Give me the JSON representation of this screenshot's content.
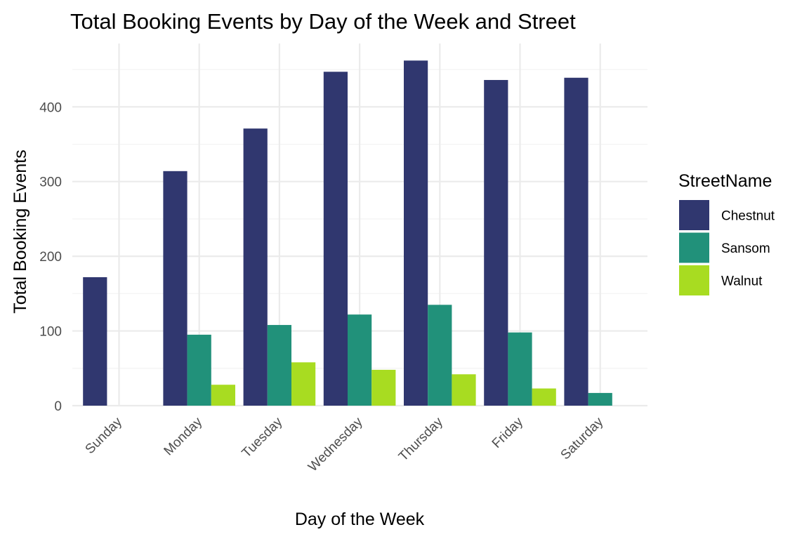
{
  "chart_data": {
    "type": "bar",
    "title": "Total Booking Events by Day of the Week and Street",
    "xlabel": "Day of the Week",
    "ylabel": "Total Booking Events",
    "categories": [
      "Sunday",
      "Monday",
      "Tuesday",
      "Wednesday",
      "Thursday",
      "Friday",
      "Saturday"
    ],
    "series": [
      {
        "name": "Chestnut",
        "color": "#30376f",
        "values": [
          172,
          314,
          371,
          447,
          462,
          436,
          439
        ]
      },
      {
        "name": "Sansom",
        "color": "#21917a",
        "values": [
          0,
          95,
          108,
          122,
          135,
          98,
          17
        ]
      },
      {
        "name": "Walnut",
        "color": "#a8dc21",
        "values": [
          0,
          28,
          58,
          48,
          42,
          23,
          0
        ]
      }
    ],
    "ylim": [
      0,
      480
    ],
    "y_ticks": [
      0,
      100,
      200,
      300,
      400
    ],
    "grid": true,
    "legend": {
      "title": "StreetName",
      "position": "right"
    }
  }
}
